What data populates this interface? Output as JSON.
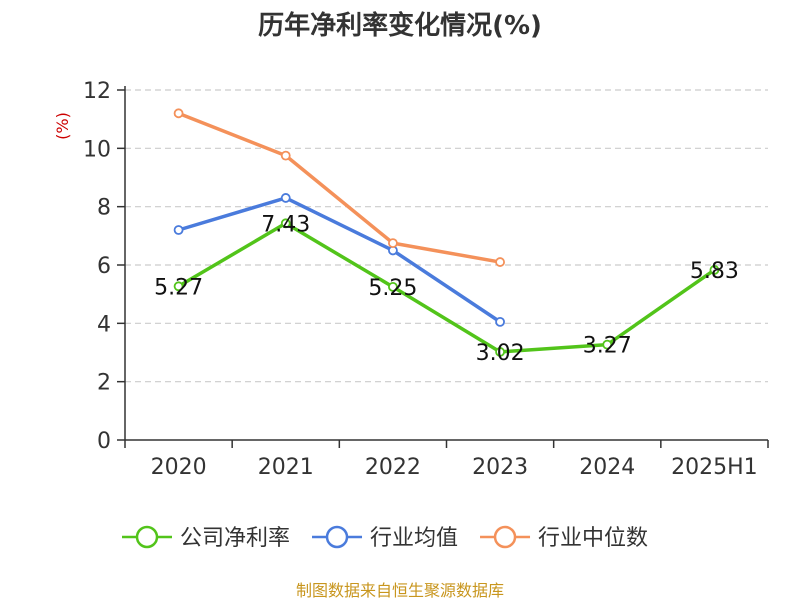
{
  "chart_data": {
    "type": "line",
    "title": "历年净利率变化情况(%)",
    "ylabel": "(%)",
    "categories": [
      "2020",
      "2021",
      "2022",
      "2023",
      "2024",
      "2025H1"
    ],
    "ylim": [
      0,
      12
    ],
    "yticks": [
      0,
      2,
      4,
      6,
      8,
      10,
      12
    ],
    "grid": true,
    "legend_position": "bottom",
    "series": [
      {
        "name": "公司净利率",
        "color": "#52c41a",
        "values": [
          5.27,
          7.43,
          5.25,
          3.02,
          3.27,
          5.83
        ],
        "labels": [
          "5.27",
          "7.43",
          "5.25",
          "3.02",
          "3.27",
          "5.83"
        ],
        "show_labels": true
      },
      {
        "name": "行业均值",
        "color": "#4a7bdc",
        "values": [
          7.2,
          8.3,
          6.5,
          4.05,
          null,
          null
        ],
        "show_labels": false
      },
      {
        "name": "行业中位数",
        "color": "#f4915a",
        "values": [
          11.2,
          9.75,
          6.75,
          6.1,
          null,
          null
        ],
        "show_labels": false
      }
    ]
  },
  "source": {
    "text": "制图数据来自恒生聚源数据库",
    "color": "#c8961e"
  },
  "colors": {
    "ylabel": "#cc0000",
    "axis": "#333333",
    "grid": "#cccccc"
  }
}
